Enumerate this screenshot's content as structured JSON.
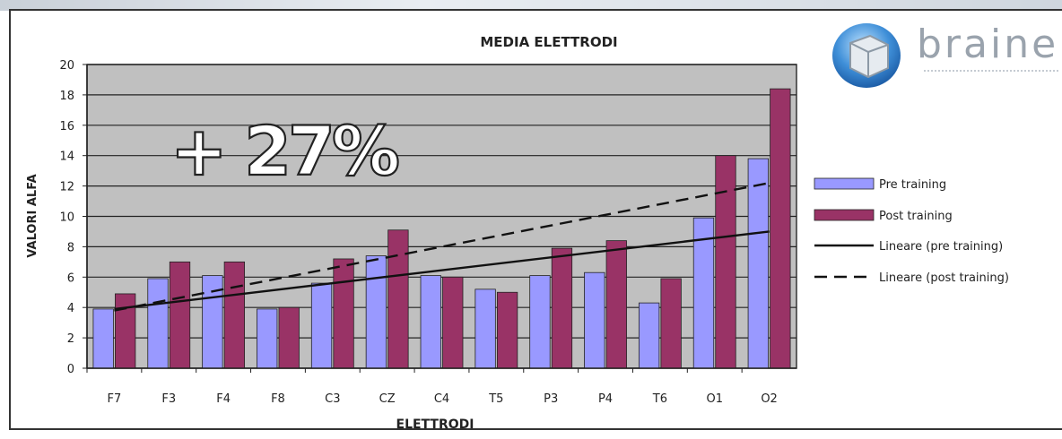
{
  "brand": {
    "name": "brainer"
  },
  "annotation": {
    "text": "+ 27%"
  },
  "chart_data": {
    "type": "bar",
    "title": "MEDIA ELETTRODI",
    "xlabel": "ELETTRODI",
    "ylabel": "VALORI ALFA",
    "ylim": [
      0,
      20
    ],
    "yticks": [
      0,
      2,
      4,
      6,
      8,
      10,
      12,
      14,
      16,
      18,
      20
    ],
    "grid": true,
    "legend_position": "right",
    "categories": [
      "F7",
      "F3",
      "F4",
      "F8",
      "C3",
      "CZ",
      "C4",
      "T5",
      "P3",
      "P4",
      "T6",
      "O1",
      "O2"
    ],
    "series": [
      {
        "name": "Pre training",
        "color": "#9999ff",
        "values": [
          3.9,
          5.9,
          6.1,
          3.9,
          5.6,
          7.4,
          6.1,
          5.2,
          6.1,
          6.3,
          4.3,
          9.9,
          13.8
        ]
      },
      {
        "name": "Post training",
        "color": "#993366",
        "values": [
          4.9,
          7.0,
          7.0,
          4.0,
          7.2,
          9.1,
          6.0,
          5.0,
          7.9,
          8.4,
          5.9,
          14.0,
          18.4
        ]
      }
    ],
    "trendlines": [
      {
        "name": "Lineare (pre training)",
        "style": "solid",
        "start": 3.9,
        "end": 9.0
      },
      {
        "name": "Lineare (post training)",
        "style": "dashed",
        "start": 3.8,
        "end": 12.2
      }
    ]
  }
}
